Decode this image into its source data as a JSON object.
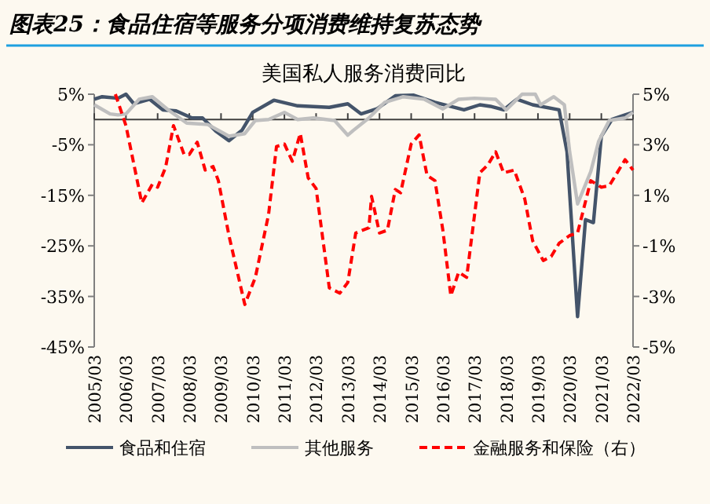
{
  "chart_data": {
    "type": "line",
    "title": "图表25：食品住宿等服务分项消费维持复苏态势",
    "subtitle": "美国私人服务消费同比",
    "xlim": [
      "2005-03",
      "2022-03"
    ],
    "xticks": [
      {
        "value": "2005-03",
        "label": "2005/03"
      },
      {
        "value": "2006-03",
        "label": "2006/03"
      },
      {
        "value": "2007-03",
        "label": "2007/03"
      },
      {
        "value": "2008-03",
        "label": "2008/03"
      },
      {
        "value": "2009-03",
        "label": "2009/03"
      },
      {
        "value": "2010-03",
        "label": "2010/03"
      },
      {
        "value": "2011-03",
        "label": "2011/03"
      },
      {
        "value": "2012-03",
        "label": "2012/03"
      },
      {
        "value": "2013-03",
        "label": "2013/03"
      },
      {
        "value": "2014-03",
        "label": "2014/03"
      },
      {
        "value": "2015-03",
        "label": "2015/03"
      },
      {
        "value": "2016-03",
        "label": "2016/03"
      },
      {
        "value": "2017-03",
        "label": "2017/03"
      },
      {
        "value": "2018-03",
        "label": "2018/03"
      },
      {
        "value": "2019-03",
        "label": "2019/03"
      },
      {
        "value": "2020-03",
        "label": "2020/03"
      },
      {
        "value": "2021-03",
        "label": "2021/03"
      },
      {
        "value": "2022-03",
        "label": "2022/03"
      }
    ],
    "ylim": [
      -45,
      5
    ],
    "yticks": [
      {
        "value": 5,
        "label": "5%"
      },
      {
        "value": -5,
        "label": "-5%"
      },
      {
        "value": -15,
        "label": "-15%"
      },
      {
        "value": -25,
        "label": "-25%"
      },
      {
        "value": -35,
        "label": "-35%"
      },
      {
        "value": -45,
        "label": "-45%"
      }
    ],
    "y2lim": [
      -5,
      5
    ],
    "y2ticks": [
      {
        "value": 5,
        "label": "5%"
      },
      {
        "value": 3,
        "label": "3%"
      },
      {
        "value": 1,
        "label": "1%"
      },
      {
        "value": -1,
        "label": "-1%"
      },
      {
        "value": -3,
        "label": "-3%"
      },
      {
        "value": -5,
        "label": "-5%"
      }
    ],
    "grid": false,
    "legend": "bottom",
    "marker": "none",
    "series": [
      {
        "name": "食品和住宿",
        "color": "#44546a",
        "line_style": "solid",
        "x": [
          "2005-03",
          "2005-06",
          "2005-12",
          "2006-03",
          "2006-06",
          "2006-12",
          "2007-05",
          "2007-10",
          "2008-04",
          "2008-08",
          "2009-01",
          "2009-06",
          "2009-11",
          "2010-03",
          "2010-11",
          "2011-08",
          "2012-08",
          "2013-03",
          "2013-08",
          "2014-02",
          "2014-09",
          "2015-04",
          "2015-12",
          "2016-11",
          "2017-05",
          "2017-09",
          "2018-02",
          "2018-07",
          "2019-01",
          "2019-11",
          "2020-02",
          "2020-06",
          "2020-09",
          "2020-12",
          "2021-03",
          "2021-07",
          "2021-12",
          "2022-03"
        ],
        "values": [
          4.0,
          4.5,
          4.2,
          5.0,
          3.1,
          4.0,
          1.9,
          1.7,
          0.3,
          0.3,
          -2.3,
          -4.2,
          -2.1,
          1.4,
          3.8,
          2.7,
          2.4,
          3.1,
          1.1,
          2.1,
          4.7,
          4.8,
          3.4,
          1.9,
          2.9,
          2.6,
          1.9,
          4.0,
          2.9,
          1.9,
          -6.4,
          -39.0,
          -19.8,
          -20.4,
          -3.3,
          0.0,
          0.9,
          1.4
        ]
      },
      {
        "name": "其他服务",
        "color": "#bfbfbf",
        "line_style": "solid",
        "x": [
          "2005-03",
          "2005-09",
          "2005-12",
          "2006-03",
          "2006-08",
          "2007-01",
          "2007-07",
          "2008-02",
          "2008-10",
          "2009-06",
          "2009-12",
          "2010-04",
          "2010-09",
          "2011-03",
          "2011-08",
          "2012-02",
          "2012-10",
          "2013-03",
          "2013-05",
          "2013-11",
          "2014-05",
          "2014-12",
          "2015-08",
          "2016-03",
          "2016-09",
          "2017-03",
          "2017-11",
          "2018-03",
          "2018-09",
          "2019-02",
          "2019-04",
          "2019-09",
          "2020-01",
          "2020-03",
          "2020-06",
          "2020-11",
          "2021-02",
          "2021-06",
          "2021-12",
          "2022-03"
        ],
        "values": [
          2.9,
          1.1,
          0.9,
          1.1,
          4.0,
          4.5,
          1.9,
          -0.7,
          -1.0,
          -3.3,
          -2.8,
          -0.2,
          0.0,
          1.4,
          0.0,
          0.3,
          -0.2,
          -3.1,
          -2.2,
          0.3,
          3.4,
          4.5,
          4.0,
          2.1,
          4.0,
          4.2,
          4.0,
          1.9,
          5.0,
          5.0,
          2.9,
          4.5,
          2.9,
          -6.4,
          -16.7,
          -10.3,
          -4.3,
          -0.2,
          0.3,
          1.4
        ]
      },
      {
        "name": "金融服务和保险（右）",
        "color": "#ff0000",
        "line_style": "dashed",
        "axis": "y2",
        "x": [
          "2005-11",
          "2006-03",
          "2006-09",
          "2007-01",
          "2007-03",
          "2007-06",
          "2007-09",
          "2008-01",
          "2008-03",
          "2008-06",
          "2008-09",
          "2008-12",
          "2009-02",
          "2009-06",
          "2009-12",
          "2010-04",
          "2010-09",
          "2010-12",
          "2011-03",
          "2011-06",
          "2011-09",
          "2011-12",
          "2012-03",
          "2012-08",
          "2012-12",
          "2013-03",
          "2013-06",
          "2013-11",
          "2013-12",
          "2014-03",
          "2014-06",
          "2014-09",
          "2014-11",
          "2015-03",
          "2015-06",
          "2015-09",
          "2015-12",
          "2016-03",
          "2016-06",
          "2016-09",
          "2016-12",
          "2017-05",
          "2017-08",
          "2017-11",
          "2018-02",
          "2018-06",
          "2018-10",
          "2019-01",
          "2019-05",
          "2019-08",
          "2019-11",
          "2020-03",
          "2020-06",
          "2020-11",
          "2021-03",
          "2021-06",
          "2021-12",
          "2022-03"
        ],
        "values": [
          5.0,
          3.76,
          0.7,
          1.44,
          1.32,
          2.1,
          3.76,
          2.62,
          2.62,
          3.1,
          2.0,
          2.14,
          1.58,
          -0.59,
          -3.32,
          -2.25,
          0.24,
          2.93,
          3.03,
          2.35,
          3.45,
          1.69,
          1.27,
          -2.66,
          -2.87,
          -2.45,
          -0.49,
          -0.28,
          0.96,
          -0.49,
          -0.38,
          1.23,
          1.1,
          3.03,
          3.39,
          1.79,
          1.58,
          -0.38,
          -2.97,
          -2.04,
          -2.25,
          1.89,
          2.2,
          2.72,
          1.89,
          2.0,
          0.86,
          -0.8,
          -1.58,
          -1.42,
          -0.9,
          -0.59,
          -0.49,
          1.58,
          1.32,
          1.38,
          2.41,
          2.0
        ]
      }
    ]
  }
}
